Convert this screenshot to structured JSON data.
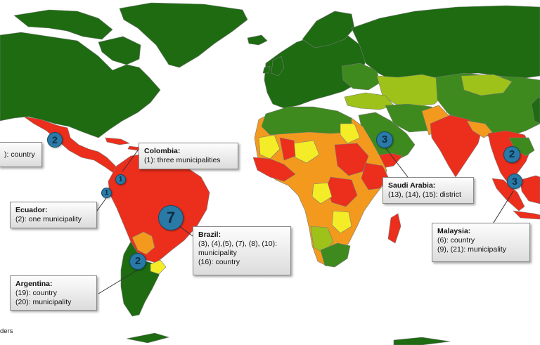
{
  "callouts": {
    "mexico_partial": {
      "line": "): country"
    },
    "colombia": {
      "title": "Colombia:",
      "lines": [
        "(1): three municipalities"
      ]
    },
    "ecuador": {
      "title": "Ecuador:",
      "lines": [
        "(2): one municipality"
      ]
    },
    "saudi_arabia": {
      "title": "Saudi Arabia:",
      "lines": [
        "(13), (14), (15): district"
      ]
    },
    "brazil": {
      "title": "Brazil:",
      "lines": [
        "(3), (4),(5), (7), (8), (10):",
        "municipality",
        "(16): country"
      ]
    },
    "malaysia": {
      "title": "Malaysia:",
      "lines": [
        "(6): country",
        "(9), (21): municipality"
      ]
    },
    "argentina": {
      "title": "Argentina:",
      "lines": [
        "(19): country",
        "(20): municipality"
      ]
    }
  },
  "markers": {
    "mexico": "2",
    "colombia": "1",
    "ecuador": "1",
    "brazil": "7",
    "argentina": "2",
    "saudi_arabia": "3",
    "india_east": "2",
    "malaysia": "3"
  },
  "footer": {
    "text": "ders"
  },
  "colors": {
    "dark_green": "#1e6b12",
    "green": "#3f8a1e",
    "light_green": "#9ec21a",
    "yellow": "#f4ec26",
    "orange": "#f39a1e",
    "red": "#ec2e1c",
    "marker_blue": "#2a7aa8"
  }
}
